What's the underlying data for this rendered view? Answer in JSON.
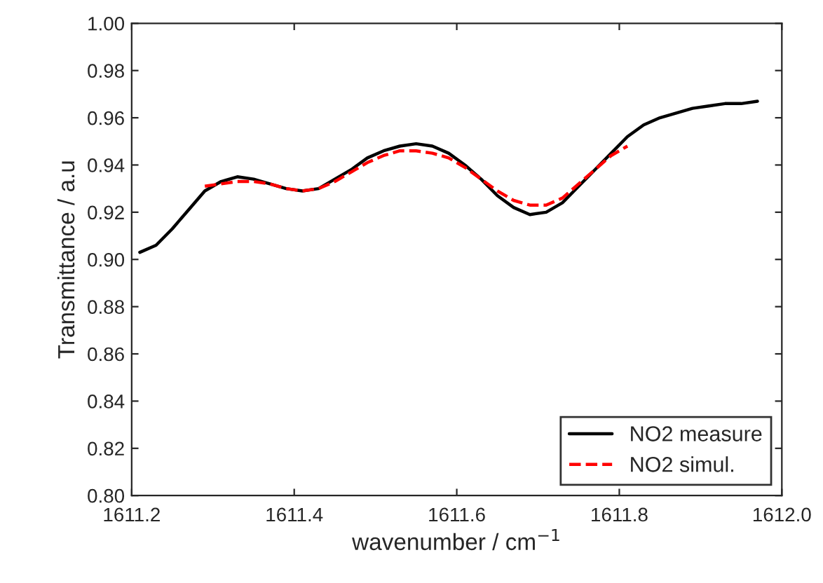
{
  "chart_data": {
    "type": "line",
    "xlabel": "wavenumber / cm$^{−1}$",
    "ylabel": "Transmittance / a.u",
    "xlim": [
      1611.2,
      1612.0
    ],
    "xticks": [
      {
        "value": 1611.2,
        "label": "1611.2"
      },
      {
        "value": 1611.4,
        "label": "1611.4"
      },
      {
        "value": 1611.6,
        "label": "1611.6"
      },
      {
        "value": 1611.8,
        "label": "1611.8"
      },
      {
        "value": 1612.0,
        "label": "1612.0"
      }
    ],
    "ylim": [
      0.8,
      1.0
    ],
    "yticks": [
      {
        "value": 0.8,
        "label": "0.80"
      },
      {
        "value": 0.82,
        "label": "0.82"
      },
      {
        "value": 0.84,
        "label": "0.84"
      },
      {
        "value": 0.86,
        "label": "0.86"
      },
      {
        "value": 0.88,
        "label": "0.88"
      },
      {
        "value": 0.9,
        "label": "0.90"
      },
      {
        "value": 0.92,
        "label": "0.92"
      },
      {
        "value": 0.94,
        "label": "0.94"
      },
      {
        "value": 0.96,
        "label": "0.96"
      },
      {
        "value": 0.98,
        "label": "0.98"
      },
      {
        "value": 1.0,
        "label": "1.00"
      }
    ],
    "grid": false,
    "legend": "bottom right",
    "series": [
      {
        "name": "NO2 measure",
        "color": "#000000",
        "line_style": "solid",
        "x": [
          1611.21,
          1611.23,
          1611.25,
          1611.27,
          1611.29,
          1611.31,
          1611.33,
          1611.35,
          1611.37,
          1611.39,
          1611.41,
          1611.43,
          1611.45,
          1611.47,
          1611.49,
          1611.51,
          1611.53,
          1611.55,
          1611.57,
          1611.59,
          1611.61,
          1611.63,
          1611.65,
          1611.67,
          1611.69,
          1611.71,
          1611.73,
          1611.75,
          1611.77,
          1611.79,
          1611.81,
          1611.83,
          1611.85,
          1611.87,
          1611.89,
          1611.91,
          1611.93,
          1611.95,
          1611.97
        ],
        "values": [
          0.903,
          0.906,
          0.913,
          0.921,
          0.929,
          0.933,
          0.935,
          0.934,
          0.932,
          0.93,
          0.929,
          0.93,
          0.934,
          0.938,
          0.943,
          0.946,
          0.948,
          0.949,
          0.948,
          0.945,
          0.94,
          0.934,
          0.927,
          0.922,
          0.919,
          0.92,
          0.924,
          0.931,
          0.938,
          0.945,
          0.952,
          0.957,
          0.96,
          0.962,
          0.964,
          0.965,
          0.966,
          0.966,
          0.967
        ]
      },
      {
        "name": "NO2 simul.",
        "color": "#ff0000",
        "line_style": "dashed",
        "x": [
          1611.29,
          1611.31,
          1611.33,
          1611.35,
          1611.37,
          1611.39,
          1611.41,
          1611.43,
          1611.45,
          1611.47,
          1611.49,
          1611.51,
          1611.53,
          1611.55,
          1611.57,
          1611.59,
          1611.61,
          1611.63,
          1611.65,
          1611.67,
          1611.69,
          1611.71,
          1611.73,
          1611.75,
          1611.77,
          1611.79,
          1611.81
        ],
        "values": [
          0.931,
          0.932,
          0.933,
          0.933,
          0.932,
          0.93,
          0.929,
          0.93,
          0.933,
          0.937,
          0.941,
          0.944,
          0.946,
          0.946,
          0.945,
          0.943,
          0.939,
          0.934,
          0.929,
          0.925,
          0.923,
          0.923,
          0.926,
          0.932,
          0.938,
          0.944,
          0.948
        ]
      }
    ]
  }
}
